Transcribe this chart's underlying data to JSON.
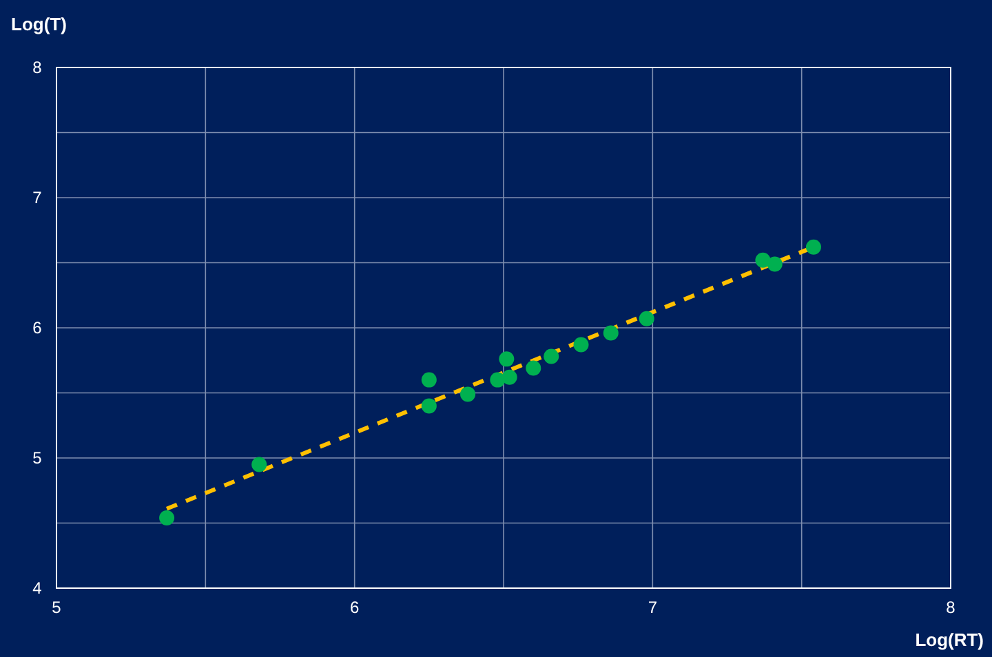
{
  "chart_data": {
    "type": "scatter",
    "xlabel": "Log(RT)",
    "ylabel": "Log(T)",
    "xlim": [
      5,
      8
    ],
    "ylim": [
      4,
      8
    ],
    "xticks": [
      5,
      {
        "value": 5.5,
        "label": null
      },
      6,
      {
        "value": 6.5,
        "label": null
      },
      7,
      {
        "value": 7.5,
        "label": null
      },
      8
    ],
    "yticks": [
      4,
      {
        "value": 4.5,
        "label": null
      },
      5,
      {
        "value": 5.5,
        "label": null
      },
      6,
      {
        "value": 6.5,
        "label": null
      },
      7,
      {
        "value": 7.5,
        "label": null
      },
      8
    ],
    "grid": true,
    "marker": "circle",
    "series": [
      {
        "color": "#00b050",
        "x": [
          5.37,
          5.68,
          6.25,
          6.25,
          6.38,
          6.48,
          6.51,
          6.52,
          6.6,
          6.66,
          6.76,
          6.86,
          6.98,
          7.37,
          7.41,
          7.54
        ],
        "values": [
          4.54,
          4.95,
          5.6,
          5.4,
          5.49,
          5.6,
          5.76,
          5.62,
          5.69,
          5.78,
          5.87,
          5.96,
          6.07,
          6.52,
          6.49,
          6.62
        ]
      },
      {
        "type": "line",
        "color": "#ffc000",
        "line_style": "dashed",
        "marker": "none",
        "x": [
          5.37,
          7.54
        ],
        "values": [
          4.61,
          6.62
        ]
      }
    ]
  }
}
